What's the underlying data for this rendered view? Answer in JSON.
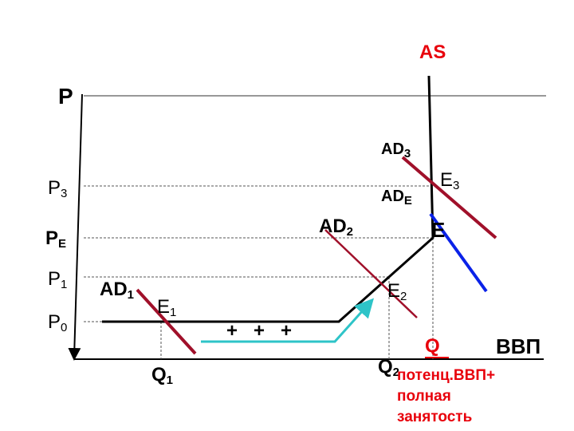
{
  "labels": {
    "as": "AS",
    "p_axis": "P",
    "p3": {
      "main": "P",
      "sub": "3"
    },
    "pe": {
      "main": "P",
      "sub": "E"
    },
    "p1": {
      "main": "P",
      "sub": "1"
    },
    "p0": {
      "main": "P",
      "sub": "0"
    },
    "ad3": {
      "main": "AD",
      "sub": "3"
    },
    "ade": {
      "main": "AD",
      "sub": "E"
    },
    "ad2": {
      "main": "AD",
      "sub": "2"
    },
    "ad1": {
      "main": "AD",
      "sub": "1"
    },
    "e3": {
      "main": "E",
      "sub": "3"
    },
    "e": "E",
    "e2": {
      "main": "E",
      "sub": "2"
    },
    "e1": {
      "main": "E",
      "sub": "1"
    },
    "plus": "+   +   +",
    "q1": {
      "main": "Q",
      "sub": "1"
    },
    "q2": {
      "main": "Q",
      "sub": "2"
    },
    "q": "Q",
    "gdp": "ВВП",
    "note": [
      "потенц.ВВП+",
      "полная",
      "занятость"
    ]
  }
}
